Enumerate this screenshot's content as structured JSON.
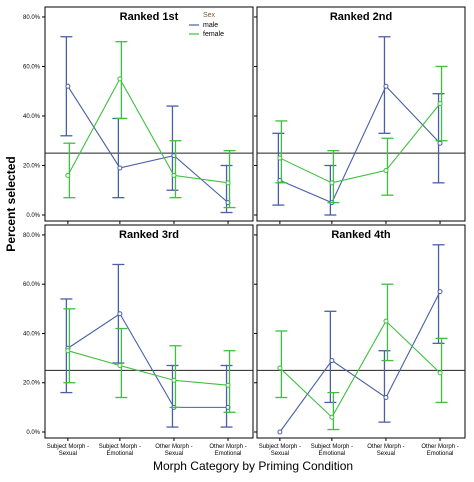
{
  "chart_data": {
    "type": "line",
    "ylabel": "Percent selected",
    "xlabel": "Morph Category by Priming Condition",
    "legend": {
      "title": "Sex",
      "placement": "top-right of first panel",
      "entries": [
        {
          "name": "male",
          "color": "#4a5fa8"
        },
        {
          "name": "female",
          "color": "#3fbf3f"
        }
      ]
    },
    "categories": [
      [
        "Subject Morph -",
        "Sexual"
      ],
      [
        "Subject Morph -",
        "Emotional"
      ],
      [
        "Other Morph -",
        "Sexual"
      ],
      [
        "Other Morph -",
        "Emotional"
      ]
    ],
    "y_ticks": [
      "0.0%",
      "20.0%",
      "40.0%",
      "60.0%",
      "80.0%"
    ],
    "ylim": [
      0,
      82
    ],
    "reference_line": 25,
    "grid": false,
    "panels": [
      {
        "title": "Ranked 1st",
        "series": [
          {
            "name": "male",
            "color": "#4a5fa8",
            "values": [
              52,
              19,
              24,
              5
            ],
            "error_low": [
              32,
              7,
              10,
              1
            ],
            "error_high": [
              72,
              39,
              44,
              20
            ]
          },
          {
            "name": "female",
            "color": "#3fbf3f",
            "values": [
              16,
              55,
              16,
              13
            ],
            "error_low": [
              7,
              39,
              7,
              3
            ],
            "error_high": [
              29,
              70,
              30,
              26
            ]
          }
        ]
      },
      {
        "title": "Ranked 2nd",
        "series": [
          {
            "name": "male",
            "color": "#4a5fa8",
            "values": [
              14,
              5,
              52,
              29
            ],
            "error_low": [
              4,
              0,
              33,
              13
            ],
            "error_high": [
              33,
              20,
              72,
              49
            ]
          },
          {
            "name": "female",
            "color": "#3fbf3f",
            "values": [
              23,
              13,
              18,
              45
            ],
            "error_low": [
              13,
              5,
              8,
              30
            ],
            "error_high": [
              38,
              26,
              31,
              60
            ]
          }
        ]
      },
      {
        "title": "Ranked 3rd",
        "series": [
          {
            "name": "male",
            "color": "#4a5fa8",
            "values": [
              34,
              48,
              10,
              10
            ],
            "error_low": [
              16,
              28,
              2,
              2
            ],
            "error_high": [
              54,
              68,
              27,
              27
            ]
          },
          {
            "name": "female",
            "color": "#3fbf3f",
            "values": [
              33,
              27,
              21,
              19
            ],
            "error_low": [
              20,
              14,
              10,
              8
            ],
            "error_high": [
              50,
              42,
              35,
              33
            ]
          }
        ]
      },
      {
        "title": "Ranked 4th",
        "series": [
          {
            "name": "male",
            "color": "#4a5fa8",
            "values": [
              0,
              29,
              14,
              57
            ],
            "error_low": [
              0,
              12,
              4,
              36
            ],
            "error_high": [
              0,
              49,
              33,
              76
            ]
          },
          {
            "name": "female",
            "color": "#3fbf3f",
            "values": [
              26,
              6,
              45,
              24
            ],
            "error_low": [
              14,
              1,
              29,
              12
            ],
            "error_high": [
              41,
              16,
              60,
              38
            ]
          }
        ]
      }
    ]
  }
}
